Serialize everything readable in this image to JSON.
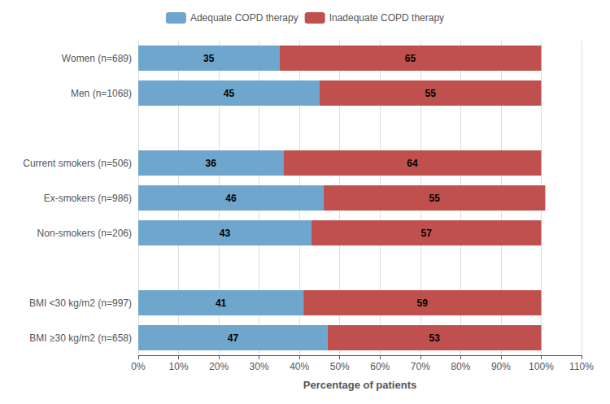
{
  "chart_data": {
    "type": "bar",
    "orientation": "horizontal",
    "stacked": true,
    "data_labels": true,
    "legend": "top",
    "grid": true,
    "xlabel": "Percentage of patients",
    "categories": [
      "Women (n=689)",
      "Men (n=1068)",
      null,
      "Current smokers (n=506)",
      "Ex-smokers (n=986)",
      "Non-smokers (n=206)",
      null,
      "BMI <30 kg/m2 (n=997)",
      "BMI ≥30 kg/m2 (n=658)"
    ],
    "series": [
      {
        "name": "Adequate COPD therapy",
        "color": "#6ea6cd",
        "values": [
          35,
          45,
          null,
          36,
          46,
          43,
          null,
          41,
          47
        ]
      },
      {
        "name": "Inadequate COPD therapy",
        "color": "#bf504d",
        "values": [
          65,
          55,
          null,
          64,
          55,
          57,
          null,
          59,
          53
        ]
      }
    ],
    "xlim": [
      0,
      110
    ],
    "xticks": [
      {
        "value": 0,
        "label": "0%"
      },
      {
        "value": 10,
        "label": "10%"
      },
      {
        "value": 20,
        "label": "20%"
      },
      {
        "value": 30,
        "label": "30%"
      },
      {
        "value": 40,
        "label": "40%"
      },
      {
        "value": 50,
        "label": "50%"
      },
      {
        "value": 60,
        "label": "60%"
      },
      {
        "value": 70,
        "label": "70%"
      },
      {
        "value": 80,
        "label": "80%"
      },
      {
        "value": 90,
        "label": "90%"
      },
      {
        "value": 100,
        "label": "100%"
      },
      {
        "value": 110,
        "label": "110%"
      }
    ]
  }
}
